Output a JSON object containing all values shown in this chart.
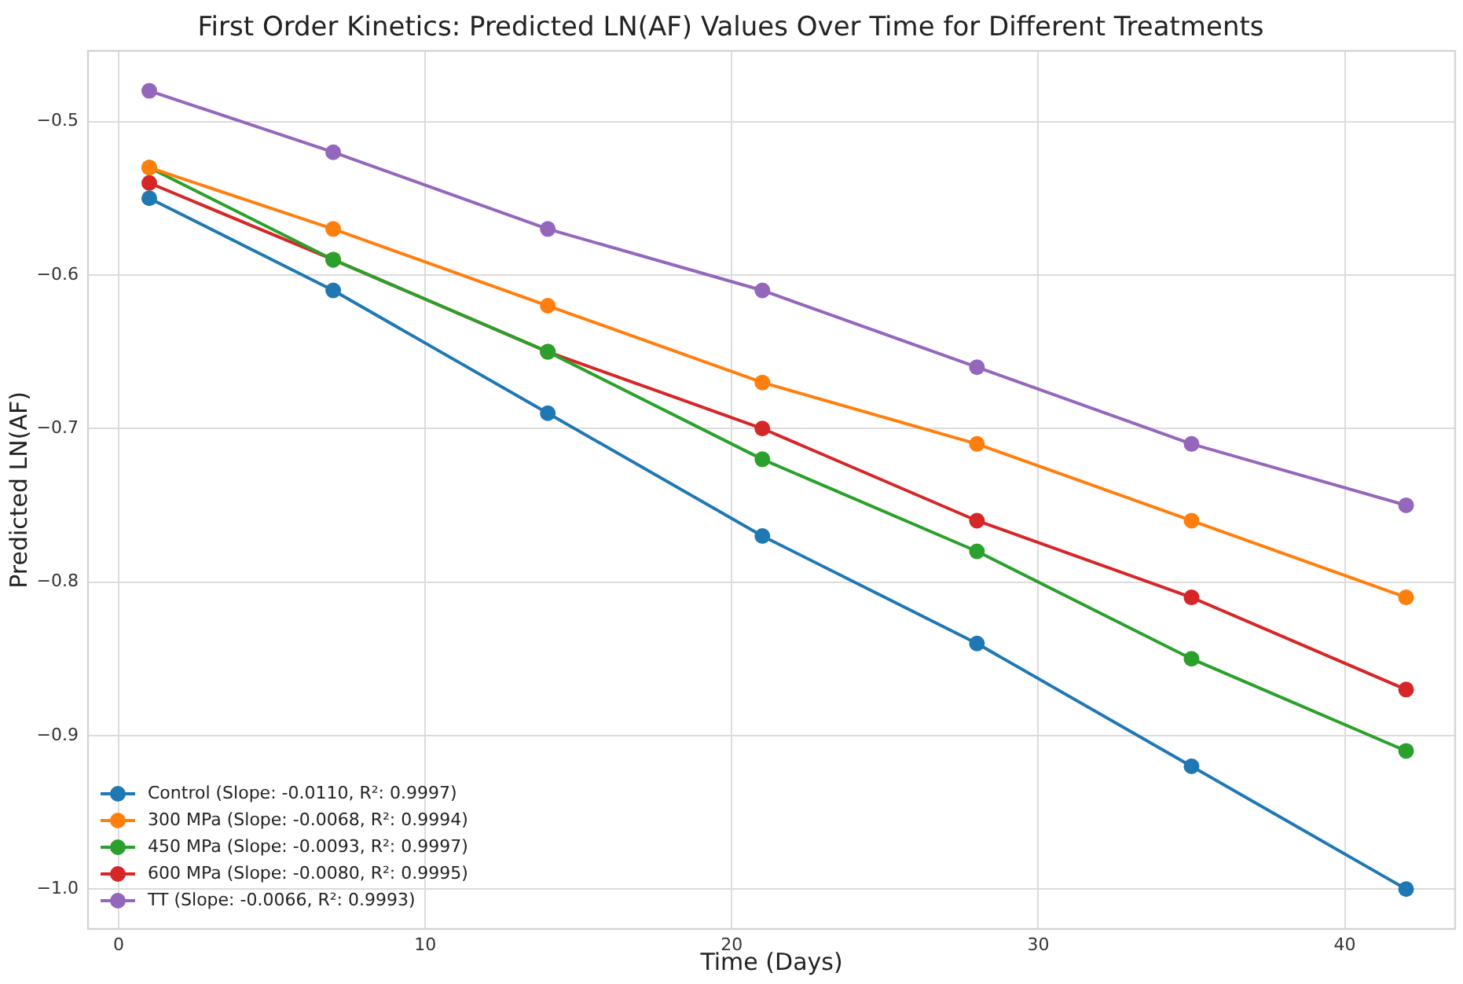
{
  "chart_data": {
    "type": "line",
    "title": "First Order Kinetics: Predicted LN(AF) Values Over Time for Different Treatments",
    "xlabel": "Time (Days)",
    "ylabel": "Predicted LN(AF)",
    "x": [
      1,
      7,
      14,
      21,
      28,
      35,
      42
    ],
    "series": [
      {
        "name": "Control (Slope: -0.0110, R²: 0.9997)",
        "color": "#1f77b4",
        "values": [
          -0.55,
          -0.61,
          -0.69,
          -0.77,
          -0.84,
          -0.92,
          -1.0
        ]
      },
      {
        "name": "300 MPa (Slope: -0.0068, R²: 0.9994)",
        "color": "#ff7f0e",
        "values": [
          -0.53,
          -0.57,
          -0.62,
          -0.67,
          -0.71,
          -0.76,
          -0.81
        ]
      },
      {
        "name": "450 MPa (Slope: -0.0093, R²: 0.9997)",
        "color": "#2ca02c",
        "values": [
          -0.53,
          -0.59,
          -0.65,
          -0.72,
          -0.78,
          -0.85,
          -0.91
        ]
      },
      {
        "name": "600 MPa (Slope: -0.0080, R²: 0.9995)",
        "color": "#d62728",
        "values": [
          -0.54,
          -0.59,
          -0.65,
          -0.7,
          -0.76,
          -0.81,
          -0.87
        ]
      },
      {
        "name": "TT (Slope: -0.0066, R²: 0.9993)",
        "color": "#9467bd",
        "values": [
          -0.48,
          -0.52,
          -0.57,
          -0.61,
          -0.66,
          -0.71,
          -0.75
        ]
      }
    ],
    "xlim": [
      -1.0,
      43.6
    ],
    "xticks": [
      0,
      10,
      20,
      30,
      40
    ],
    "ylim": [
      -1.026,
      -0.454
    ],
    "yticks": [
      {
        "value": -1.0,
        "label": "−1.0"
      },
      {
        "value": -0.9,
        "label": "−0.9"
      },
      {
        "value": -0.8,
        "label": "−0.8"
      },
      {
        "value": -0.7,
        "label": "−0.7"
      },
      {
        "value": -0.6,
        "label": "−0.6"
      },
      {
        "value": -0.5,
        "label": "−0.5"
      }
    ],
    "grid": true,
    "legend": "bottom left",
    "marker": "circle",
    "line_style": "solid"
  }
}
